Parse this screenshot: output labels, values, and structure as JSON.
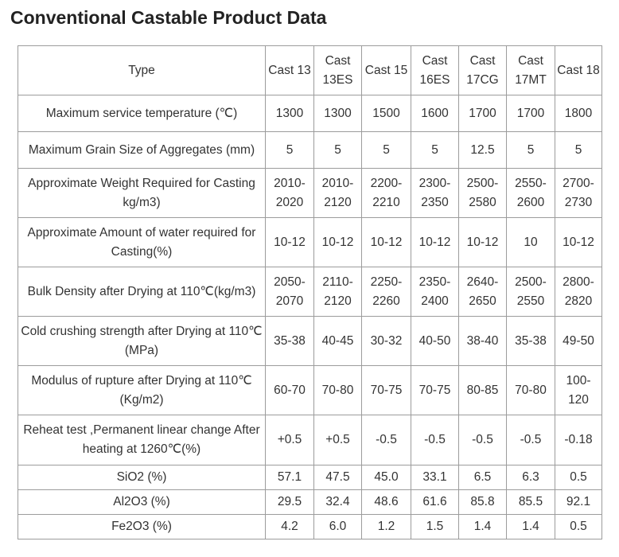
{
  "page": {
    "title": "Conventional Castable Product Data"
  },
  "table": {
    "header_label": "Type",
    "products": [
      "Cast 13",
      "Cast 13ES",
      "Cast 15",
      "Cast 16ES",
      "Cast 17CG",
      "Cast 17MT",
      "Cast 18"
    ],
    "rows": [
      {
        "label": "Maximum service temperature (℃)",
        "values": [
          "1300",
          "1300",
          "1500",
          "1600",
          "1700",
          "1700",
          "1800"
        ]
      },
      {
        "label": "Maximum Grain Size of Aggregates (mm)",
        "values": [
          "5",
          "5",
          "5",
          "5",
          "12.5",
          "5",
          "5"
        ]
      },
      {
        "label": "Approximate Weight Required for Casting kg/m3)",
        "values": [
          "2010-2020",
          "2010-2120",
          "2200-2210",
          "2300-2350",
          "2500-2580",
          "2550-2600",
          "2700-2730"
        ]
      },
      {
        "label": "Approximate Amount of water required for Casting(%)",
        "values": [
          "10-12",
          "10-12",
          "10-12",
          "10-12",
          "10-12",
          "10",
          "10-12"
        ]
      },
      {
        "label": "Bulk Density after Drying at 110℃(kg/m3)",
        "values": [
          "2050-2070",
          "2110-2120",
          "2250-2260",
          "2350-2400",
          "2640-2650",
          "2500-2550",
          "2800-2820"
        ]
      },
      {
        "label": "Cold crushing strength after Drying at 110℃ (MPa)",
        "values": [
          "35-38",
          "40-45",
          "30-32",
          "40-50",
          "38-40",
          "35-38",
          "49-50"
        ]
      },
      {
        "label": "Modulus of rupture after Drying at 110℃ (Kg/m2)",
        "values": [
          "60-70",
          "70-80",
          "70-75",
          "70-75",
          "80-85",
          "70-80",
          "100-120"
        ]
      },
      {
        "label": "Reheat test ,Permanent  linear change After heating at 1260℃(%)",
        "values": [
          "+0.5",
          "+0.5",
          "-0.5",
          "-0.5",
          "-0.5",
          "-0.5",
          "-0.18"
        ]
      },
      {
        "label": "SiO2 (%)",
        "values": [
          "57.1",
          "47.5",
          "45.0",
          "33.1",
          "6.5",
          "6.3",
          "0.5"
        ]
      },
      {
        "label": "Al2O3 (%)",
        "values": [
          "29.5",
          "32.4",
          "48.6",
          "61.6",
          "85.8",
          "85.5",
          "92.1"
        ]
      },
      {
        "label": "Fe2O3 (%)",
        "values": [
          "4.2",
          "6.0",
          "1.2",
          "1.5",
          "1.4",
          "1.4",
          "0.5"
        ]
      }
    ]
  }
}
